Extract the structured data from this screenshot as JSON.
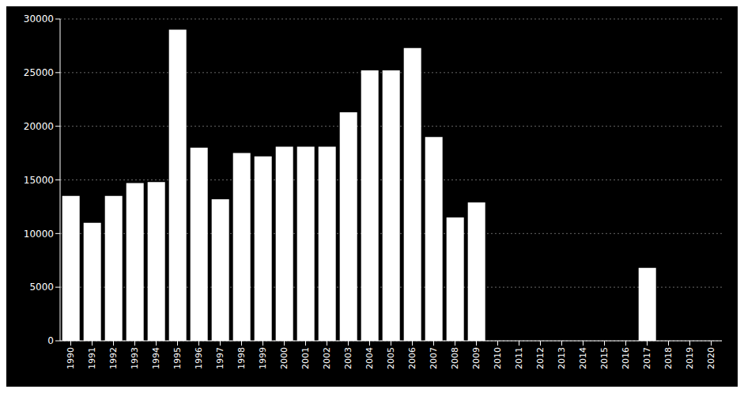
{
  "chart_data": {
    "type": "bar",
    "categories": [
      "1990",
      "1991",
      "1992",
      "1993",
      "1994",
      "1995",
      "1996",
      "1997",
      "1998",
      "1999",
      "2000",
      "2001",
      "2002",
      "2003",
      "2004",
      "2005",
      "2006",
      "2007",
      "2008",
      "2009",
      "2010",
      "2011",
      "2012",
      "2013",
      "2014",
      "2015",
      "2016",
      "2017",
      "2018",
      "2019",
      "2020"
    ],
    "values": [
      13500,
      11000,
      13500,
      14700,
      14800,
      29000,
      18000,
      13200,
      17500,
      17200,
      18100,
      18100,
      18100,
      21300,
      25200,
      25200,
      27300,
      19000,
      11500,
      12900,
      0,
      0,
      0,
      0,
      0,
      0,
      0,
      6800,
      0,
      0,
      0
    ],
    "color": "#ffffff",
    "ylim": [
      0,
      30000
    ],
    "yticks": [
      0,
      5000,
      10000,
      15000,
      20000,
      25000,
      30000
    ],
    "grid": true
  }
}
